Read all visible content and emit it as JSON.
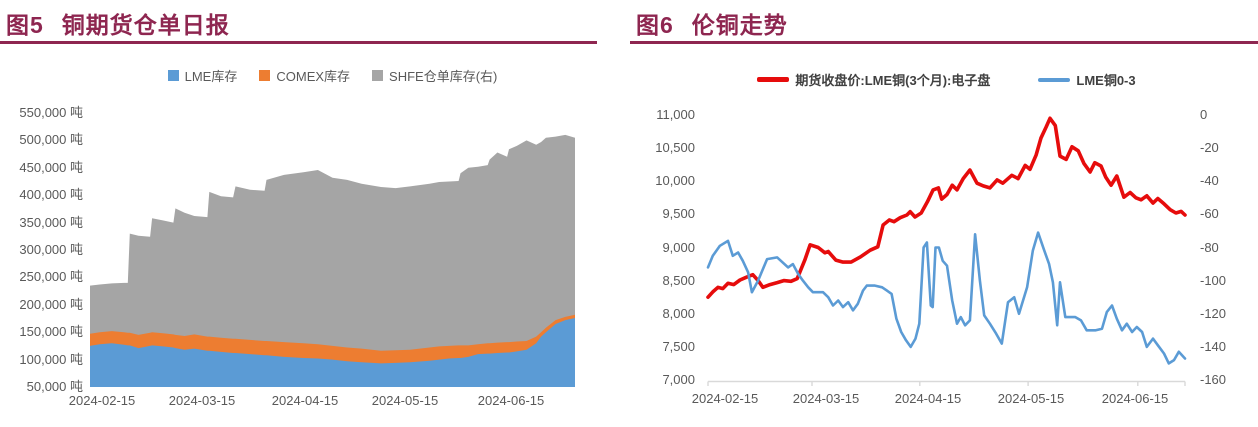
{
  "page": {
    "background": "#ffffff",
    "accent_color": "#8e2650",
    "axis_text_color": "#595959"
  },
  "left_panel": {
    "title_prefix": "图5",
    "title_text": "铜期货仓单日报"
  },
  "right_panel": {
    "title_prefix": "图6",
    "title_text": "伦铜走势"
  },
  "chart_data": [
    {
      "type": "area",
      "stacked": true,
      "title": "图5 铜期货仓单日报",
      "legend_position": "top-center",
      "grid": false,
      "legend": [
        {
          "label": "LME库存",
          "color": "#5b9bd5"
        },
        {
          "label": "COMEX库存",
          "color": "#ed7d31"
        },
        {
          "label": "SHFE仓单库存(右)",
          "color": "#a5a5a5"
        }
      ],
      "x_axis": {
        "tick_labels": [
          "2024-02-15",
          "2024-03-15",
          "2024-04-15",
          "2024-05-15",
          "2024-06-15"
        ]
      },
      "y_axis": {
        "min": 50000,
        "max": 550000,
        "step": 50000,
        "unit": "吨",
        "tick_labels": [
          "550,000 吨",
          "500,000 吨",
          "450,000 吨",
          "400,000 吨",
          "350,000 吨",
          "300,000 吨",
          "250,000 吨",
          "200,000 吨",
          "150,000 吨",
          "100,000 吨",
          "50,000 吨"
        ]
      },
      "note": "series values are cumulative stack tops (tons) as read off the left axis; x is fraction of the date range 2024-02-15 to 2024-06-30",
      "x": [
        0.0,
        0.02,
        0.045,
        0.07,
        0.078,
        0.082,
        0.1,
        0.124,
        0.128,
        0.15,
        0.172,
        0.176,
        0.195,
        0.215,
        0.242,
        0.246,
        0.27,
        0.295,
        0.3,
        0.33,
        0.36,
        0.364,
        0.4,
        0.44,
        0.47,
        0.5,
        0.53,
        0.56,
        0.6,
        0.63,
        0.66,
        0.7,
        0.72,
        0.74,
        0.76,
        0.764,
        0.78,
        0.8,
        0.82,
        0.824,
        0.84,
        0.86,
        0.864,
        0.88,
        0.9,
        0.92,
        0.93,
        0.94,
        0.96,
        0.98,
        1.0
      ],
      "series": [
        {
          "name": "LME库存",
          "color": "#5b9bd5",
          "values": [
            125000,
            128000,
            130000,
            127000,
            126000,
            126000,
            121000,
            125000,
            126000,
            124000,
            122000,
            121000,
            118000,
            120000,
            116000,
            116000,
            114000,
            112000,
            112000,
            110000,
            108000,
            108000,
            105000,
            103000,
            102000,
            100000,
            97000,
            95000,
            93000,
            94000,
            95000,
            98000,
            100000,
            102000,
            103000,
            103000,
            105000,
            110000,
            111000,
            111000,
            112000,
            113000,
            113000,
            115000,
            118000,
            130000,
            142000,
            150000,
            165000,
            172000,
            176000
          ]
        },
        {
          "name": "COMEX库存",
          "color": "#ed7d31",
          "values": [
            147000,
            150000,
            152000,
            150000,
            149000,
            149000,
            145000,
            149000,
            150000,
            148000,
            146000,
            145000,
            143000,
            146000,
            142000,
            142000,
            140000,
            138000,
            138000,
            136000,
            134000,
            134000,
            132000,
            130000,
            128000,
            125000,
            122000,
            120000,
            116000,
            117000,
            118000,
            122000,
            124000,
            125000,
            126000,
            126000,
            126000,
            128000,
            130000,
            130000,
            131000,
            132000,
            132000,
            133000,
            134000,
            142000,
            150000,
            158000,
            172000,
            178000,
            182000
          ]
        },
        {
          "name": "SHFE仓单库存(右)",
          "color": "#a5a5a5",
          "values": [
            235000,
            237000,
            239000,
            240000,
            240000,
            330000,
            326000,
            324000,
            358000,
            354000,
            350000,
            376000,
            368000,
            362000,
            360000,
            406000,
            398000,
            396000,
            416000,
            410000,
            408000,
            428000,
            437000,
            442000,
            446000,
            432000,
            428000,
            421000,
            415000,
            413000,
            416000,
            421000,
            424000,
            425000,
            426000,
            440000,
            450000,
            452000,
            455000,
            465000,
            478000,
            470000,
            484000,
            490000,
            500000,
            492000,
            497000,
            505000,
            507000,
            510000,
            505000
          ]
        }
      ]
    },
    {
      "type": "line",
      "title": "图6 伦铜走势",
      "legend_position": "top-center",
      "grid": false,
      "legend": [
        {
          "label": "期货收盘价:LME铜(3个月):电子盘",
          "color": "#e60c0c",
          "swatch": "thick-line"
        },
        {
          "label": "LME铜0-3",
          "color": "#5b9bd5",
          "swatch": "line"
        }
      ],
      "x_axis": {
        "tick_labels": [
          "2024-02-15",
          "2024-03-15",
          "2024-04-15",
          "2024-05-15",
          "2024-06-15"
        ]
      },
      "y_left": {
        "min": 7000,
        "max": 11000,
        "step": 500,
        "tick_labels": [
          "11,000",
          "10,500",
          "10,000",
          "9,500",
          "9,000",
          "8,500",
          "8,000",
          "7,500",
          "7,000"
        ]
      },
      "y_right": {
        "min": -160,
        "max": 0,
        "step": 20,
        "tick_labels": [
          "0",
          "-20",
          "-40",
          "-60",
          "-80",
          "-100",
          "-120",
          "-140",
          "-160"
        ]
      },
      "note": "points are [x-fraction of date range, value]; red series on left axis (USD/ton), blue spread series on right axis",
      "series": [
        {
          "name": "期货收盘价:LME铜(3个月):电子盘",
          "axis": "left",
          "color": "#e60c0c",
          "width": 3.6,
          "points": [
            [
              0.0,
              8250
            ],
            [
              0.01,
              8330
            ],
            [
              0.021,
              8400
            ],
            [
              0.031,
              8380
            ],
            [
              0.042,
              8460
            ],
            [
              0.054,
              8440
            ],
            [
              0.067,
              8510
            ],
            [
              0.08,
              8550
            ],
            [
              0.094,
              8590
            ],
            [
              0.105,
              8500
            ],
            [
              0.115,
              8400
            ],
            [
              0.13,
              8440
            ],
            [
              0.145,
              8470
            ],
            [
              0.159,
              8500
            ],
            [
              0.174,
              8490
            ],
            [
              0.187,
              8530
            ],
            [
              0.203,
              8810
            ],
            [
              0.214,
              9040
            ],
            [
              0.231,
              9000
            ],
            [
              0.245,
              8920
            ],
            [
              0.252,
              8940
            ],
            [
              0.268,
              8810
            ],
            [
              0.283,
              8780
            ],
            [
              0.3,
              8780
            ],
            [
              0.32,
              8860
            ],
            [
              0.34,
              8960
            ],
            [
              0.356,
              9010
            ],
            [
              0.367,
              9340
            ],
            [
              0.38,
              9415
            ],
            [
              0.39,
              9390
            ],
            [
              0.403,
              9450
            ],
            [
              0.417,
              9490
            ],
            [
              0.424,
              9540
            ],
            [
              0.434,
              9460
            ],
            [
              0.447,
              9520
            ],
            [
              0.46,
              9690
            ],
            [
              0.472,
              9870
            ],
            [
              0.483,
              9900
            ],
            [
              0.49,
              9730
            ],
            [
              0.501,
              9800
            ],
            [
              0.512,
              9940
            ],
            [
              0.522,
              9870
            ],
            [
              0.535,
              10040
            ],
            [
              0.549,
              10170
            ],
            [
              0.564,
              9970
            ],
            [
              0.577,
              9930
            ],
            [
              0.591,
              9900
            ],
            [
              0.606,
              10020
            ],
            [
              0.618,
              9970
            ],
            [
              0.637,
              10090
            ],
            [
              0.65,
              10040
            ],
            [
              0.665,
              10240
            ],
            [
              0.675,
              10180
            ],
            [
              0.688,
              10400
            ],
            [
              0.698,
              10650
            ],
            [
              0.709,
              10820
            ],
            [
              0.717,
              10950
            ],
            [
              0.728,
              10840
            ],
            [
              0.738,
              10380
            ],
            [
              0.751,
              10330
            ],
            [
              0.763,
              10520
            ],
            [
              0.776,
              10460
            ],
            [
              0.788,
              10270
            ],
            [
              0.801,
              10140
            ],
            [
              0.811,
              10280
            ],
            [
              0.824,
              10230
            ],
            [
              0.834,
              10060
            ],
            [
              0.845,
              9940
            ],
            [
              0.857,
              10080
            ],
            [
              0.872,
              9760
            ],
            [
              0.885,
              9830
            ],
            [
              0.897,
              9750
            ],
            [
              0.908,
              9720
            ],
            [
              0.92,
              9780
            ],
            [
              0.933,
              9670
            ],
            [
              0.943,
              9740
            ],
            [
              0.956,
              9660
            ],
            [
              0.969,
              9570
            ],
            [
              0.981,
              9520
            ],
            [
              0.992,
              9545
            ],
            [
              1.0,
              9490
            ]
          ]
        },
        {
          "name": "LME铜0-3",
          "axis": "right",
          "color": "#5b9bd5",
          "width": 2.6,
          "points": [
            [
              0.0,
              -92
            ],
            [
              0.01,
              -85
            ],
            [
              0.025,
              -79
            ],
            [
              0.042,
              -76
            ],
            [
              0.052,
              -85
            ],
            [
              0.063,
              -83
            ],
            [
              0.073,
              -88
            ],
            [
              0.084,
              -95
            ],
            [
              0.092,
              -107
            ],
            [
              0.105,
              -100
            ],
            [
              0.124,
              -87
            ],
            [
              0.145,
              -86
            ],
            [
              0.168,
              -92
            ],
            [
              0.178,
              -90
            ],
            [
              0.189,
              -96
            ],
            [
              0.199,
              -100
            ],
            [
              0.21,
              -104
            ],
            [
              0.22,
              -107
            ],
            [
              0.241,
              -107
            ],
            [
              0.252,
              -110
            ],
            [
              0.262,
              -115
            ],
            [
              0.273,
              -112
            ],
            [
              0.283,
              -116
            ],
            [
              0.294,
              -113
            ],
            [
              0.304,
              -118
            ],
            [
              0.314,
              -114
            ],
            [
              0.325,
              -106
            ],
            [
              0.333,
              -103
            ],
            [
              0.35,
              -103
            ],
            [
              0.365,
              -104
            ],
            [
              0.375,
              -106
            ],
            [
              0.385,
              -108
            ],
            [
              0.395,
              -123
            ],
            [
              0.405,
              -131
            ],
            [
              0.415,
              -136
            ],
            [
              0.425,
              -140
            ],
            [
              0.435,
              -135
            ],
            [
              0.443,
              -126
            ],
            [
              0.452,
              -80
            ],
            [
              0.459,
              -77
            ],
            [
              0.467,
              -115
            ],
            [
              0.471,
              -116
            ],
            [
              0.477,
              -80
            ],
            [
              0.484,
              -80
            ],
            [
              0.492,
              -88
            ],
            [
              0.501,
              -91
            ],
            [
              0.512,
              -112
            ],
            [
              0.522,
              -126
            ],
            [
              0.53,
              -122
            ],
            [
              0.539,
              -127
            ],
            [
              0.549,
              -124
            ],
            [
              0.56,
              -72
            ],
            [
              0.57,
              -100
            ],
            [
              0.579,
              -121
            ],
            [
              0.591,
              -126
            ],
            [
              0.604,
              -132
            ],
            [
              0.616,
              -138
            ],
            [
              0.629,
              -113
            ],
            [
              0.642,
              -110
            ],
            [
              0.652,
              -120
            ],
            [
              0.669,
              -104
            ],
            [
              0.681,
              -82
            ],
            [
              0.692,
              -71
            ],
            [
              0.704,
              -81
            ],
            [
              0.715,
              -90
            ],
            [
              0.723,
              -101
            ],
            [
              0.732,
              -127
            ],
            [
              0.738,
              -101
            ],
            [
              0.749,
              -122
            ],
            [
              0.77,
              -122
            ],
            [
              0.782,
              -124
            ],
            [
              0.794,
              -130
            ],
            [
              0.813,
              -130
            ],
            [
              0.826,
              -129
            ],
            [
              0.836,
              -119
            ],
            [
              0.847,
              -115
            ],
            [
              0.857,
              -123
            ],
            [
              0.868,
              -130
            ],
            [
              0.878,
              -126
            ],
            [
              0.889,
              -131
            ],
            [
              0.899,
              -128
            ],
            [
              0.91,
              -131
            ],
            [
              0.92,
              -140
            ],
            [
              0.933,
              -135
            ],
            [
              0.943,
              -139
            ],
            [
              0.956,
              -144
            ],
            [
              0.966,
              -150
            ],
            [
              0.977,
              -148
            ],
            [
              0.987,
              -143
            ],
            [
              1.0,
              -147
            ]
          ]
        }
      ]
    }
  ]
}
